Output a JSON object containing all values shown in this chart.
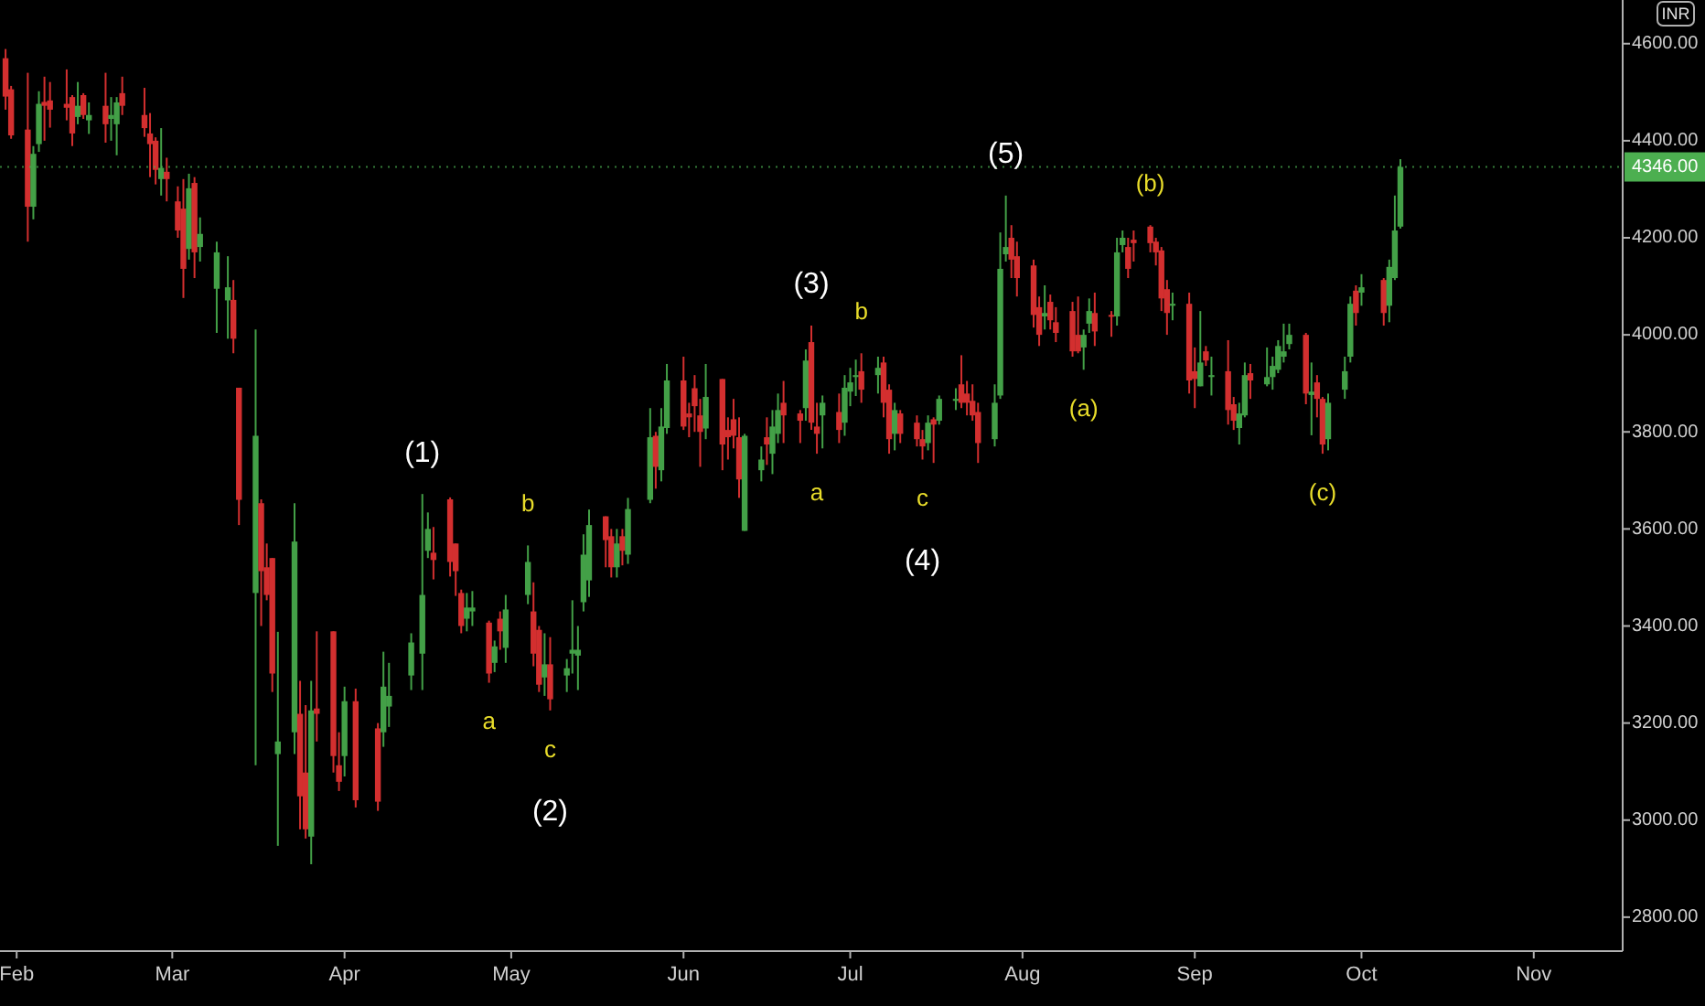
{
  "chart_data": {
    "type": "candlestick",
    "ylabel": "INR",
    "xlim": [
      "--01-29",
      "--11-17"
    ],
    "xticks": [
      {
        "value": "--02-01",
        "label": "Feb"
      },
      {
        "value": "--03-01",
        "label": "Mar"
      },
      {
        "value": "--04-01",
        "label": "Apr"
      },
      {
        "value": "--05-01",
        "label": "May"
      },
      {
        "value": "--06-01",
        "label": "Jun"
      },
      {
        "value": "--07-01",
        "label": "Jul"
      },
      {
        "value": "--08-01",
        "label": "Aug"
      },
      {
        "value": "--09-01",
        "label": "Sep"
      },
      {
        "value": "--10-01",
        "label": "Oct"
      },
      {
        "value": "--11-01",
        "label": "Nov"
      }
    ],
    "ylim": [
      2730,
      4690
    ],
    "yticks": [
      {
        "value": 2800,
        "label": "2800.00"
      },
      {
        "value": 3000,
        "label": "3000.00"
      },
      {
        "value": 3200,
        "label": "3200.00"
      },
      {
        "value": 3400,
        "label": "3400.00"
      },
      {
        "value": 3600,
        "label": "3600.00"
      },
      {
        "value": 3800,
        "label": "3800.00"
      },
      {
        "value": 4000,
        "label": "4000.00"
      },
      {
        "value": 4200,
        "label": "4200.00"
      },
      {
        "value": 4400,
        "label": "4400.00"
      },
      {
        "value": 4600,
        "label": "4600.00"
      }
    ],
    "ref_lines": [
      {
        "axis": "y",
        "value": 4346,
        "label": "4346.00",
        "color": "#4caf50"
      }
    ],
    "annotations": [
      {
        "text": "(1)",
        "x": "--04-15",
        "y": 3672
      },
      {
        "text": "a",
        "x": "--04-27",
        "y": 3283
      },
      {
        "text": "b",
        "x": "--05-04",
        "y": 3566
      },
      {
        "text": "c",
        "x": "--05-08",
        "y": 3226
      },
      {
        "text": "(2)",
        "x": "--05-08",
        "y": 3226
      },
      {
        "text": "(3)",
        "x": "--06-24",
        "y": 4019
      },
      {
        "text": "a",
        "x": "--06-25",
        "y": 3755
      },
      {
        "text": "b",
        "x": "--07-03",
        "y": 3962
      },
      {
        "text": "c",
        "x": "--07-14",
        "y": 3743
      },
      {
        "text": "(4)",
        "x": "--07-14",
        "y": 3743
      },
      {
        "text": "(5)",
        "x": "--07-29",
        "y": 4287
      },
      {
        "text": "(a)",
        "x": "--08-12",
        "y": 3928
      },
      {
        "text": "(b)",
        "x": "--08-24",
        "y": 4226
      },
      {
        "text": "(c)",
        "x": "--09-24",
        "y": 3755
      }
    ],
    "x": [
      "--01-30",
      "--01-31",
      "--02-03",
      "--02-04",
      "--02-05",
      "--02-06",
      "--02-07",
      "--02-10",
      "--02-11",
      "--02-12",
      "--02-13",
      "--02-14",
      "--02-17",
      "--02-18",
      "--02-19",
      "--02-20",
      "--02-24",
      "--02-25",
      "--02-26",
      "--02-27",
      "--02-28",
      "--03-02",
      "--03-03",
      "--03-04",
      "--03-05",
      "--03-06",
      "--03-09",
      "--03-11",
      "--03-12",
      "--03-13",
      "--03-16",
      "--03-17",
      "--03-18",
      "--03-19",
      "--03-20",
      "--03-23",
      "--03-24",
      "--03-25",
      "--03-26",
      "--03-27",
      "--03-30",
      "--03-31",
      "--04-01",
      "--04-03",
      "--04-07",
      "--04-08",
      "--04-09",
      "--04-13",
      "--04-15",
      "--04-16",
      "--04-17",
      "--04-20",
      "--04-21",
      "--04-22",
      "--04-23",
      "--04-24",
      "--04-27",
      "--04-28",
      "--04-29",
      "--04-30",
      "--05-04",
      "--05-05",
      "--05-06",
      "--05-07",
      "--05-08",
      "--05-11",
      "--05-12",
      "--05-13",
      "--05-14",
      "--05-15",
      "--05-18",
      "--05-19",
      "--05-20",
      "--05-21",
      "--05-22",
      "--05-26",
      "--05-27",
      "--05-28",
      "--05-29",
      "--06-01",
      "--06-02",
      "--06-03",
      "--06-04",
      "--06-05",
      "--06-08",
      "--06-09",
      "--06-10",
      "--06-11",
      "--06-12",
      "--06-15",
      "--06-16",
      "--06-17",
      "--06-18",
      "--06-19",
      "--06-22",
      "--06-23",
      "--06-24",
      "--06-25",
      "--06-26",
      "--06-29",
      "--06-30",
      "--07-01",
      "--07-02",
      "--07-03",
      "--07-06",
      "--07-07",
      "--07-08",
      "--07-09",
      "--07-10",
      "--07-13",
      "--07-14",
      "--07-15",
      "--07-16",
      "--07-17",
      "--07-20",
      "--07-21",
      "--07-22",
      "--07-23",
      "--07-24",
      "--07-27",
      "--07-28",
      "--07-29",
      "--07-30",
      "--07-31",
      "--08-03",
      "--08-04",
      "--08-05",
      "--08-06",
      "--08-07",
      "--08-10",
      "--08-11",
      "--08-12",
      "--08-13",
      "--08-14",
      "--08-17",
      "--08-18",
      "--08-19",
      "--08-20",
      "--08-21",
      "--08-24",
      "--08-25",
      "--08-26",
      "--08-27",
      "--08-28",
      "--08-31",
      "--09-01",
      "--09-02",
      "--09-03",
      "--09-04",
      "--09-07",
      "--09-08",
      "--09-09",
      "--09-10",
      "--09-11",
      "--09-14",
      "--09-15",
      "--09-16",
      "--09-17",
      "--09-18",
      "--09-21",
      "--09-22",
      "--09-23",
      "--09-24",
      "--09-25",
      "--09-28",
      "--09-29",
      "--09-30",
      "--10-01",
      "--10-05",
      "--10-06",
      "--10-07",
      "--10-08"
    ],
    "ohlc": [
      [
        4570,
        4589,
        4464,
        4491
      ],
      [
        4506,
        4513,
        4404,
        4411
      ],
      [
        4423,
        4540,
        4192,
        4264
      ],
      [
        4264,
        4389,
        4238,
        4373
      ],
      [
        4393,
        4502,
        4377,
        4476
      ],
      [
        4480,
        4532,
        4400,
        4472
      ],
      [
        4483,
        4521,
        4427,
        4464
      ],
      [
        4476,
        4547,
        4442,
        4468
      ],
      [
        4490,
        4494,
        4389,
        4415
      ],
      [
        4449,
        4521,
        4434,
        4472
      ],
      [
        4494,
        4498,
        4445,
        4453
      ],
      [
        4442,
        4479,
        4414,
        4453
      ],
      [
        4472,
        4540,
        4396,
        4434
      ],
      [
        4445,
        4490,
        4400,
        4453
      ],
      [
        4434,
        4490,
        4370,
        4479
      ],
      [
        4498,
        4532,
        4453,
        4472
      ],
      [
        4453,
        4509,
        4408,
        4426
      ],
      [
        4415,
        4457,
        4325,
        4393
      ],
      [
        4400,
        4407,
        4310,
        4340
      ],
      [
        4321,
        4426,
        4287,
        4344
      ],
      [
        4336,
        4365,
        4275,
        4321
      ],
      [
        4275,
        4306,
        4200,
        4215
      ],
      [
        4260,
        4321,
        4076,
        4136
      ],
      [
        4177,
        4332,
        4155,
        4302
      ],
      [
        4313,
        4325,
        4117,
        4170
      ],
      [
        4181,
        4242,
        4151,
        4208
      ],
      [
        4095,
        4192,
        4004,
        4170
      ],
      [
        4071,
        4162,
        3992,
        4098
      ],
      [
        4072,
        4113,
        3962,
        3992
      ],
      [
        3891,
        3891,
        3608,
        3660
      ],
      [
        3468,
        4011,
        3113,
        3792
      ],
      [
        3653,
        3661,
        3400,
        3513
      ],
      [
        3521,
        3570,
        3453,
        3464
      ],
      [
        3540,
        3540,
        3264,
        3302
      ],
      [
        3136,
        3388,
        2947,
        3162
      ],
      [
        3181,
        3653,
        3136,
        3574
      ],
      [
        3219,
        3287,
        2981,
        3049
      ],
      [
        3098,
        3237,
        2962,
        2981
      ],
      [
        2966,
        3287,
        2909,
        3226
      ],
      [
        3230,
        3389,
        3162,
        3219
      ],
      [
        3389,
        3389,
        3098,
        3132
      ],
      [
        3113,
        3181,
        3060,
        3079
      ],
      [
        3132,
        3275,
        3090,
        3245
      ],
      [
        3245,
        3271,
        3026,
        3041
      ],
      [
        3189,
        3200,
        3019,
        3038
      ],
      [
        3181,
        3347,
        3151,
        3275
      ],
      [
        3234,
        3324,
        3192,
        3256
      ],
      [
        3298,
        3385,
        3268,
        3366
      ],
      [
        3343,
        3672,
        3268,
        3464
      ],
      [
        3555,
        3634,
        3540,
        3600
      ],
      [
        3551,
        3604,
        3496,
        3536
      ],
      [
        3661,
        3665,
        3502,
        3532
      ],
      [
        3570,
        3570,
        3462,
        3513
      ],
      [
        3468,
        3475,
        3385,
        3400
      ],
      [
        3415,
        3468,
        3389,
        3438
      ],
      [
        3430,
        3472,
        3400,
        3438
      ],
      [
        3407,
        3411,
        3283,
        3302
      ],
      [
        3324,
        3370,
        3305,
        3358
      ],
      [
        3415,
        3430,
        3351,
        3389
      ],
      [
        3355,
        3464,
        3324,
        3434
      ],
      [
        3464,
        3566,
        3445,
        3532
      ],
      [
        3430,
        3490,
        3317,
        3343
      ],
      [
        3392,
        3400,
        3264,
        3279
      ],
      [
        3294,
        3385,
        3256,
        3321
      ],
      [
        3321,
        3377,
        3226,
        3249
      ],
      [
        3298,
        3332,
        3264,
        3313
      ],
      [
        3343,
        3453,
        3302,
        3351
      ],
      [
        3339,
        3400,
        3268,
        3351
      ],
      [
        3449,
        3589,
        3430,
        3547
      ],
      [
        3494,
        3640,
        3460,
        3608
      ],
      [
        3626,
        3626,
        3521,
        3577
      ],
      [
        3585,
        3600,
        3500,
        3521
      ],
      [
        3521,
        3600,
        3500,
        3570
      ],
      [
        3585,
        3600,
        3525,
        3555
      ],
      [
        3547,
        3664,
        3528,
        3641
      ],
      [
        3660,
        3849,
        3653,
        3789
      ],
      [
        3792,
        3800,
        3683,
        3728
      ],
      [
        3721,
        3849,
        3698,
        3811
      ],
      [
        3808,
        3940,
        3796,
        3906
      ],
      [
        3906,
        3955,
        3804,
        3811
      ],
      [
        3838,
        3860,
        3789,
        3830
      ],
      [
        3890,
        3917,
        3800,
        3853
      ],
      [
        3834,
        3868,
        3728,
        3800
      ],
      [
        3807,
        3940,
        3785,
        3872
      ],
      [
        3909,
        3909,
        3721,
        3774
      ],
      [
        3804,
        3830,
        3743,
        3789
      ],
      [
        3826,
        3868,
        3766,
        3792
      ],
      [
        3789,
        3830,
        3664,
        3702
      ],
      [
        3596,
        3796,
        3596,
        3792
      ],
      [
        3721,
        3770,
        3698,
        3743
      ],
      [
        3789,
        3830,
        3732,
        3774
      ],
      [
        3755,
        3845,
        3713,
        3811
      ],
      [
        3796,
        3879,
        3777,
        3845
      ],
      [
        3860,
        3905,
        3777,
        3834
      ],
      [
        3838,
        3845,
        3777,
        3823
      ],
      [
        3849,
        3970,
        3823,
        3947
      ],
      [
        3985,
        4019,
        3804,
        3819
      ],
      [
        3811,
        3860,
        3755,
        3796
      ],
      [
        3834,
        3875,
        3766,
        3860
      ],
      [
        3841,
        3879,
        3777,
        3804
      ],
      [
        3819,
        3917,
        3792,
        3891
      ],
      [
        3883,
        3932,
        3853,
        3902
      ],
      [
        3913,
        3949,
        3874,
        3917
      ],
      [
        3925,
        3962,
        3860,
        3887
      ],
      [
        3917,
        3955,
        3879,
        3932
      ],
      [
        3943,
        3955,
        3830,
        3860
      ],
      [
        3887,
        3898,
        3755,
        3785
      ],
      [
        3796,
        3860,
        3762,
        3845
      ],
      [
        3838,
        3845,
        3777,
        3796
      ],
      [
        3819,
        3834,
        3770,
        3785
      ],
      [
        3785,
        3804,
        3743,
        3770
      ],
      [
        3777,
        3834,
        3762,
        3819
      ],
      [
        3826,
        3830,
        3736,
        3815
      ],
      [
        3823,
        3875,
        3815,
        3868
      ],
      [
        3864,
        3890,
        3845,
        3868
      ],
      [
        3898,
        3958,
        3849,
        3860
      ],
      [
        3879,
        3905,
        3834,
        3860
      ],
      [
        3864,
        3898,
        3823,
        3834
      ],
      [
        3841,
        3860,
        3736,
        3777
      ],
      [
        3785,
        3898,
        3770,
        3860
      ],
      [
        3875,
        4211,
        3868,
        4136
      ],
      [
        4166,
        4287,
        4151,
        4181
      ],
      [
        4200,
        4226,
        4117,
        4155
      ],
      [
        4162,
        4192,
        4079,
        4117
      ],
      [
        4143,
        4155,
        4015,
        4041
      ],
      [
        4057,
        4079,
        3977,
        4000
      ],
      [
        4038,
        4102,
        4011,
        4045
      ],
      [
        4068,
        4083,
        4011,
        4030
      ],
      [
        4026,
        4057,
        3985,
        4004
      ],
      [
        4049,
        4068,
        3955,
        3966
      ],
      [
        4000,
        4079,
        3962,
        3966
      ],
      [
        3974,
        4011,
        3928,
        4000
      ],
      [
        4023,
        4075,
        4004,
        4049
      ],
      [
        4045,
        4087,
        3977,
        4007
      ],
      [
        4041,
        4049,
        3996,
        4038
      ],
      [
        4038,
        4200,
        4019,
        4170
      ],
      [
        4185,
        4215,
        4170,
        4200
      ],
      [
        4181,
        4200,
        4117,
        4136
      ],
      [
        4196,
        4215,
        4151,
        4189
      ],
      [
        4223,
        4226,
        4170,
        4189
      ],
      [
        4192,
        4200,
        4143,
        4170
      ],
      [
        4174,
        4181,
        4049,
        4075
      ],
      [
        4094,
        4113,
        4000,
        4045
      ],
      [
        4060,
        4087,
        4030,
        4064
      ],
      [
        4064,
        4087,
        3879,
        3906
      ],
      [
        3925,
        3974,
        3849,
        3909
      ],
      [
        3894,
        4049,
        3894,
        3943
      ],
      [
        3966,
        3977,
        3936,
        3947
      ],
      [
        3913,
        3955,
        3875,
        3917
      ],
      [
        3925,
        3989,
        3815,
        3845
      ],
      [
        3857,
        3872,
        3804,
        3823
      ],
      [
        3808,
        3860,
        3774,
        3838
      ],
      [
        3834,
        3943,
        3830,
        3917
      ],
      [
        3921,
        3940,
        3868,
        3906
      ],
      [
        3898,
        3974,
        3894,
        3913
      ],
      [
        3913,
        3955,
        3887,
        3936
      ],
      [
        3928,
        3989,
        3921,
        3977
      ],
      [
        3955,
        4023,
        3943,
        3966
      ],
      [
        3981,
        4023,
        3970,
        4000
      ],
      [
        4000,
        4004,
        3857,
        3879
      ],
      [
        3876,
        3943,
        3793,
        3883
      ],
      [
        3902,
        3917,
        3830,
        3868
      ],
      [
        3868,
        3872,
        3755,
        3774
      ],
      [
        3785,
        3879,
        3762,
        3860
      ],
      [
        3887,
        3955,
        3868,
        3925
      ],
      [
        3955,
        4079,
        3943,
        4064
      ],
      [
        4091,
        4102,
        4019,
        4045
      ],
      [
        4087,
        4125,
        4060,
        4098
      ],
      [
        4113,
        4117,
        4019,
        4045
      ],
      [
        4060,
        4155,
        4026,
        4140
      ],
      [
        4117,
        4287,
        4113,
        4215
      ],
      [
        4223,
        4362,
        4219,
        4346
      ]
    ]
  }
}
